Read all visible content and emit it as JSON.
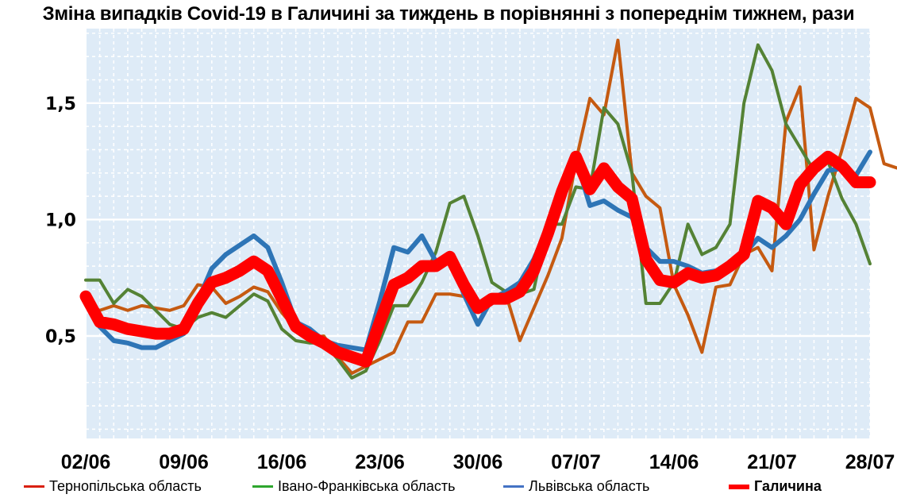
{
  "chart_data": {
    "type": "line",
    "title": "Зміна випадків Covid-19 в Галичині за тиждень в порівнянні з попереднім тижнем, рази",
    "xlabel": "",
    "ylabel": "",
    "x_ticks": [
      "02/06",
      "09/06",
      "16/06",
      "23/06",
      "30/06",
      "07/07",
      "14/06",
      "21/07",
      "28/07"
    ],
    "y_ticks": [
      "0,5",
      "1,0",
      "1,5"
    ],
    "y_tick_values": [
      0.5,
      1.0,
      1.5
    ],
    "xlim": [
      0,
      56
    ],
    "ylim": [
      0.06,
      1.82
    ],
    "grid": true,
    "legend_position": "bottom",
    "series": [
      {
        "name": "Тернопільська область",
        "color": "#c55a11",
        "legend_color": "#d9200f",
        "width": 4,
        "values": [
          0.64,
          0.61,
          0.63,
          0.61,
          0.63,
          0.62,
          0.61,
          0.63,
          0.72,
          0.71,
          0.64,
          0.67,
          0.71,
          0.69,
          0.6,
          0.53,
          0.49,
          0.5,
          0.41,
          0.34,
          0.37,
          0.4,
          0.43,
          0.56,
          0.56,
          0.68,
          0.68,
          0.67,
          0.64,
          0.67,
          0.68,
          0.48,
          0.62,
          0.76,
          0.92,
          1.25,
          1.52,
          1.45,
          1.77,
          1.2,
          1.1,
          1.05,
          0.72,
          0.59,
          0.43,
          0.71,
          0.72,
          0.85,
          0.88,
          0.78,
          1.42,
          1.57,
          0.87,
          1.1,
          1.3,
          1.52,
          1.48,
          1.24,
          1.22
        ]
      },
      {
        "name": "Івано-Франківська область",
        "color": "#548235",
        "legend_color": "#2ea62e",
        "width": 4,
        "values": [
          0.74,
          0.74,
          0.64,
          0.7,
          0.67,
          0.61,
          0.55,
          0.53,
          0.58,
          0.6,
          0.58,
          0.63,
          0.68,
          0.65,
          0.53,
          0.48,
          0.47,
          0.47,
          0.4,
          0.32,
          0.35,
          0.48,
          0.63,
          0.63,
          0.73,
          0.86,
          1.07,
          1.1,
          0.93,
          0.73,
          0.69,
          0.68,
          0.7,
          0.98,
          0.98,
          1.14,
          1.13,
          1.48,
          1.41,
          1.2,
          0.64,
          0.64,
          0.73,
          0.98,
          0.85,
          0.88,
          0.98,
          1.5,
          1.75,
          1.64,
          1.41,
          1.31,
          1.21,
          1.25,
          1.09,
          0.98,
          0.81
        ]
      },
      {
        "name": "Львівська область",
        "color": "#2e75b6",
        "legend_color": "#4472c4",
        "width": 6,
        "values": [
          0.64,
          0.54,
          0.48,
          0.47,
          0.45,
          0.45,
          0.48,
          0.51,
          0.65,
          0.79,
          0.85,
          0.89,
          0.93,
          0.88,
          0.73,
          0.56,
          0.53,
          0.48,
          0.46,
          0.45,
          0.44,
          0.65,
          0.88,
          0.86,
          0.93,
          0.82,
          0.85,
          0.68,
          0.55,
          0.66,
          0.69,
          0.73,
          0.83,
          0.97,
          1.11,
          1.26,
          1.06,
          1.08,
          1.04,
          1.01,
          0.88,
          0.82,
          0.82,
          0.8,
          0.77,
          0.78,
          0.79,
          0.85,
          0.92,
          0.88,
          0.93,
          1.0,
          1.11,
          1.21,
          1.22,
          1.19,
          1.29
        ]
      },
      {
        "name": "Галичина",
        "color": "#ff0000",
        "legend_color": "#ff0000",
        "width": 15,
        "values": [
          0.67,
          0.56,
          0.55,
          0.53,
          0.52,
          0.51,
          0.51,
          0.53,
          0.64,
          0.73,
          0.75,
          0.78,
          0.82,
          0.78,
          0.66,
          0.54,
          0.5,
          0.47,
          0.43,
          0.41,
          0.39,
          0.56,
          0.72,
          0.75,
          0.8,
          0.8,
          0.84,
          0.72,
          0.62,
          0.66,
          0.66,
          0.69,
          0.78,
          0.94,
          1.12,
          1.27,
          1.13,
          1.22,
          1.14,
          1.09,
          0.83,
          0.74,
          0.73,
          0.77,
          0.75,
          0.76,
          0.8,
          0.85,
          1.08,
          1.05,
          0.98,
          1.15,
          1.22,
          1.27,
          1.23,
          1.16,
          1.16
        ]
      }
    ]
  }
}
